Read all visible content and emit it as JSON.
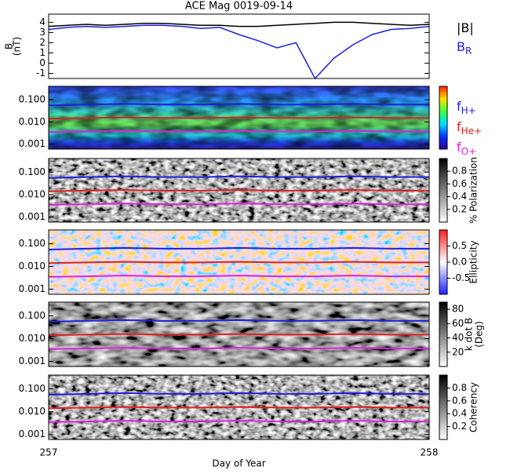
{
  "chart_data": [
    {
      "type": "line",
      "title": "ACE Mag 0019-09-14",
      "ylabel": [
        "B",
        "(nT)"
      ],
      "xlim": [
        257,
        258
      ],
      "ylim": [
        -1.5,
        4.8
      ],
      "yticks": [
        -1,
        0,
        1,
        2,
        3,
        4
      ],
      "legend": "right",
      "x": [
        257,
        257.05,
        257.1,
        257.15,
        257.2,
        257.25,
        257.3,
        257.35,
        257.4,
        257.45,
        257.5,
        257.55,
        257.6,
        257.65,
        257.7,
        257.75,
        257.8,
        257.85,
        257.9,
        257.95,
        258
      ],
      "series": [
        {
          "name": "|B|",
          "color": "#000000",
          "values": [
            3.6,
            3.7,
            3.8,
            3.7,
            3.8,
            3.9,
            3.9,
            3.8,
            3.7,
            3.7,
            3.6,
            3.6,
            3.7,
            3.8,
            3.9,
            4.0,
            4.0,
            3.9,
            3.8,
            3.7,
            3.8
          ]
        },
        {
          "name": "B",
          "name_sub": "R",
          "color": "#1f1fe0",
          "values": [
            3.3,
            3.5,
            3.6,
            3.5,
            3.6,
            3.7,
            3.7,
            3.6,
            3.4,
            3.5,
            2.8,
            2.2,
            1.5,
            2.0,
            -1.5,
            0.5,
            1.8,
            2.8,
            3.3,
            3.4,
            3.6
          ]
        }
      ]
    },
    {
      "type": "spectrogram",
      "log_y": true,
      "legend": "right",
      "xlim": [
        257,
        258
      ],
      "ylim": [
        0.0006,
        0.4
      ],
      "yticks": [
        {
          "value": 0.001,
          "label": "0.001"
        },
        {
          "value": 0.01,
          "label": "0.010"
        },
        {
          "value": 0.1,
          "label": "0.100"
        }
      ],
      "x": [
        257,
        257.1,
        257.2,
        257.3,
        257.4,
        257.5,
        257.6,
        257.7,
        257.8,
        257.9,
        258
      ],
      "series": [
        {
          "name": "f",
          "name_sub": "H+",
          "color": "#1f1fe0",
          "values": [
            0.055,
            0.06,
            0.065,
            0.06,
            0.06,
            0.065,
            0.06,
            0.06,
            0.065,
            0.06,
            0.06
          ]
        },
        {
          "name": "f",
          "name_sub": "He+",
          "color": "#e02020",
          "values": [
            0.014,
            0.015,
            0.016,
            0.015,
            0.015,
            0.016,
            0.015,
            0.015,
            0.016,
            0.015,
            0.015
          ]
        },
        {
          "name": "f",
          "name_sub": "O+",
          "color": "#e020e0",
          "values": [
            0.0035,
            0.0037,
            0.004,
            0.0037,
            0.0037,
            0.004,
            0.0037,
            0.0037,
            0.004,
            0.0037,
            0.0037
          ]
        }
      ]
    },
    {
      "type": "spectrogram",
      "log_y": true,
      "xlim": [
        257,
        258
      ],
      "ylim": [
        0.0006,
        0.4
      ],
      "yticks": [
        {
          "value": 0.001,
          "label": "0.001"
        },
        {
          "value": 0.01,
          "label": "0.010"
        },
        {
          "value": 0.1,
          "label": "0.100"
        }
      ],
      "cbar_lim": [
        0,
        1
      ],
      "cbar_ticks": [
        0.2,
        0.4,
        0.6,
        0.8
      ],
      "cbar_label": [
        "% Polarization"
      ],
      "x": [
        257,
        257.1,
        257.2,
        257.3,
        257.4,
        257.5,
        257.6,
        257.7,
        257.8,
        257.9,
        258
      ],
      "series": [
        {
          "color": "#1f1fe0",
          "values": [
            0.055,
            0.06,
            0.065,
            0.06,
            0.06,
            0.065,
            0.06,
            0.06,
            0.065,
            0.06,
            0.06
          ]
        },
        {
          "color": "#e02020",
          "values": [
            0.014,
            0.015,
            0.016,
            0.015,
            0.015,
            0.016,
            0.015,
            0.015,
            0.016,
            0.015,
            0.015
          ]
        },
        {
          "color": "#e020e0",
          "values": [
            0.0035,
            0.0037,
            0.004,
            0.0037,
            0.0037,
            0.004,
            0.0037,
            0.0037,
            0.004,
            0.0037,
            0.0037
          ]
        }
      ]
    },
    {
      "type": "spectrogram",
      "log_y": true,
      "xlim": [
        257,
        258
      ],
      "ylim": [
        0.0006,
        0.4
      ],
      "yticks": [
        {
          "value": 0.001,
          "label": "0.001"
        },
        {
          "value": 0.01,
          "label": "0.010"
        },
        {
          "value": 0.1,
          "label": "0.100"
        }
      ],
      "cbar_lim": [
        -1,
        1
      ],
      "cbar_ticks": [
        -0.5,
        {
          "value": 0,
          "label": "0.0"
        },
        0.5
      ],
      "cbar_label": [
        "Ellipticity"
      ],
      "x": [
        257,
        257.1,
        257.2,
        257.3,
        257.4,
        257.5,
        257.6,
        257.7,
        257.8,
        257.9,
        258
      ],
      "series": [
        {
          "color": "#1f1fe0",
          "values": [
            0.055,
            0.06,
            0.065,
            0.06,
            0.06,
            0.065,
            0.06,
            0.06,
            0.065,
            0.06,
            0.06
          ]
        },
        {
          "color": "#e02020",
          "values": [
            0.014,
            0.015,
            0.016,
            0.015,
            0.015,
            0.016,
            0.015,
            0.015,
            0.016,
            0.015,
            0.015
          ]
        },
        {
          "color": "#e020e0",
          "values": [
            0.0035,
            0.0037,
            0.004,
            0.0037,
            0.0037,
            0.004,
            0.0037,
            0.0037,
            0.004,
            0.0037,
            0.0037
          ]
        }
      ]
    },
    {
      "type": "spectrogram",
      "log_y": true,
      "xlim": [
        257,
        258
      ],
      "ylim": [
        0.0006,
        0.4
      ],
      "yticks": [
        {
          "value": 0.001,
          "label": "0.001"
        },
        {
          "value": 0.01,
          "label": "0.010"
        },
        {
          "value": 0.1,
          "label": "0.100"
        }
      ],
      "cbar_lim": [
        0,
        90
      ],
      "cbar_ticks": [
        20,
        40,
        60,
        80
      ],
      "cbar_label": [
        "k dot B",
        "(Deg)"
      ],
      "x": [
        257,
        257.1,
        257.2,
        257.3,
        257.4,
        257.5,
        257.6,
        257.7,
        257.8,
        257.9,
        258
      ],
      "series": [
        {
          "color": "#1f1fe0",
          "values": [
            0.055,
            0.06,
            0.065,
            0.06,
            0.06,
            0.065,
            0.06,
            0.06,
            0.065,
            0.06,
            0.06
          ]
        },
        {
          "color": "#e02020",
          "values": [
            0.014,
            0.015,
            0.016,
            0.015,
            0.015,
            0.016,
            0.015,
            0.015,
            0.016,
            0.015,
            0.015
          ]
        },
        {
          "color": "#e020e0",
          "values": [
            0.0035,
            0.0037,
            0.004,
            0.0037,
            0.0037,
            0.004,
            0.0037,
            0.0037,
            0.004,
            0.0037,
            0.0037
          ]
        }
      ]
    },
    {
      "type": "spectrogram",
      "log_y": true,
      "xlim": [
        257,
        258
      ],
      "ylim": [
        0.0006,
        0.4
      ],
      "yticks": [
        {
          "value": 0.001,
          "label": "0.001"
        },
        {
          "value": 0.01,
          "label": "0.010"
        },
        {
          "value": 0.1,
          "label": "0.100"
        }
      ],
      "cbar_lim": [
        0,
        1
      ],
      "cbar_ticks": [
        0.2,
        0.4,
        0.6,
        0.8
      ],
      "cbar_label": [
        "Coherency"
      ],
      "xticks": [
        257,
        258
      ],
      "xlabel": "Day of Year",
      "x": [
        257,
        257.1,
        257.2,
        257.3,
        257.4,
        257.5,
        257.6,
        257.7,
        257.8,
        257.9,
        258
      ],
      "series": [
        {
          "color": "#1f1fe0",
          "values": [
            0.055,
            0.06,
            0.065,
            0.06,
            0.06,
            0.065,
            0.06,
            0.06,
            0.065,
            0.06,
            0.06
          ]
        },
        {
          "color": "#e02020",
          "values": [
            0.014,
            0.015,
            0.016,
            0.015,
            0.015,
            0.016,
            0.015,
            0.015,
            0.016,
            0.015,
            0.015
          ]
        },
        {
          "color": "#e020e0",
          "values": [
            0.0035,
            0.0037,
            0.004,
            0.0037,
            0.0037,
            0.004,
            0.0037,
            0.0037,
            0.004,
            0.0037,
            0.0037
          ]
        }
      ]
    }
  ]
}
